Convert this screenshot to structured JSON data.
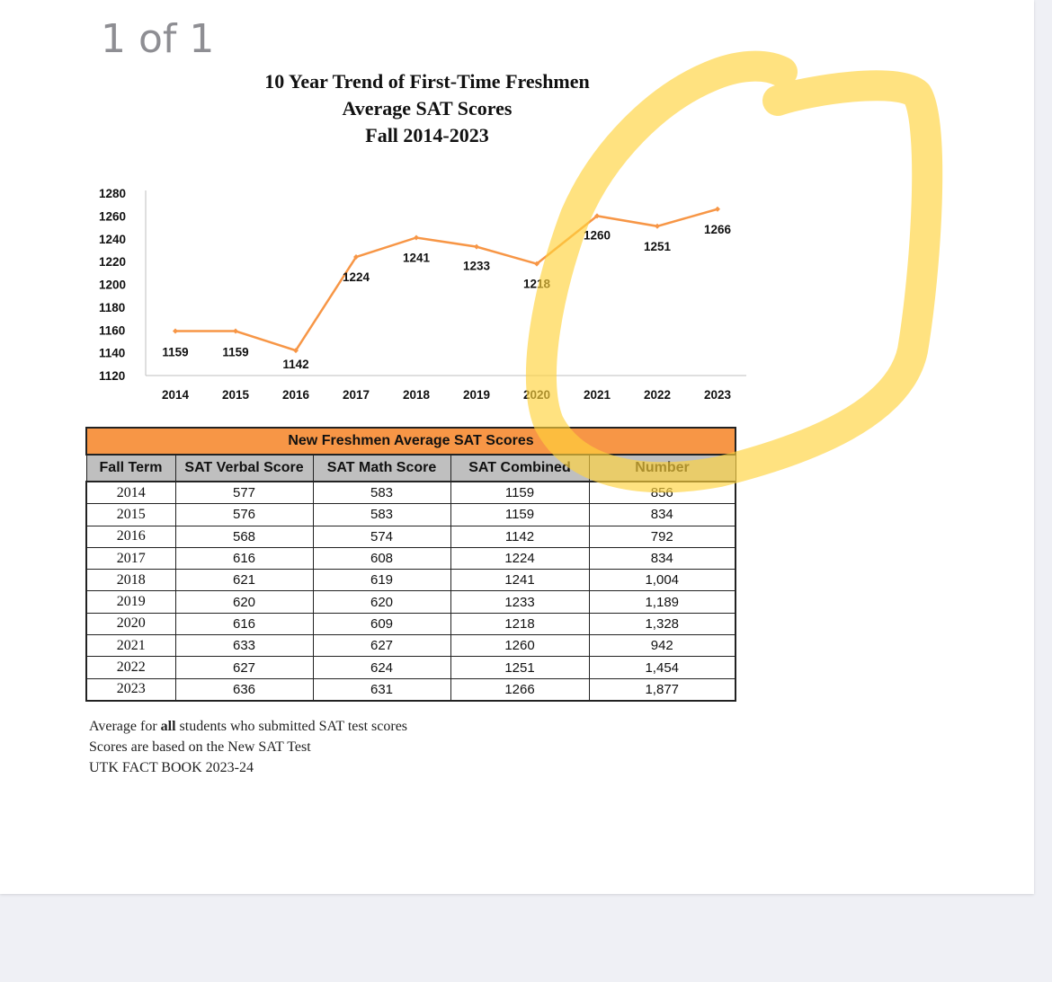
{
  "viewer": {
    "page_indicator": "1 of 1"
  },
  "chart_data": {
    "type": "line",
    "title_lines": [
      "10 Year Trend of First-Time Freshmen",
      "Average SAT Scores",
      "Fall 2014-2023"
    ],
    "categories": [
      "2014",
      "2015",
      "2016",
      "2017",
      "2018",
      "2019",
      "2020",
      "2021",
      "2022",
      "2023"
    ],
    "series": [
      {
        "values": [
          1159,
          1159,
          1142,
          1224,
          1241,
          1233,
          1218,
          1260,
          1251,
          1266
        ],
        "color": "#f79646"
      }
    ],
    "y_ticks": [
      1280,
      1260,
      1240,
      1220,
      1200,
      1180,
      1160,
      1140,
      1120
    ],
    "ylim": [
      1120,
      1280
    ],
    "grid": false,
    "legend": "none"
  },
  "table": {
    "caption": "New Freshmen Average SAT Scores",
    "headers": [
      "Fall Term",
      "SAT Verbal Score",
      "SAT Math Score",
      "SAT Combined",
      "Number"
    ],
    "rows": [
      [
        "2014",
        "577",
        "583",
        "1159",
        "856"
      ],
      [
        "2015",
        "576",
        "583",
        "1159",
        "834"
      ],
      [
        "2016",
        "568",
        "574",
        "1142",
        "792"
      ],
      [
        "2017",
        "616",
        "608",
        "1224",
        "834"
      ],
      [
        "2018",
        "621",
        "619",
        "1241",
        "1,004"
      ],
      [
        "2019",
        "620",
        "620",
        "1233",
        "1,189"
      ],
      [
        "2020",
        "616",
        "609",
        "1218",
        "1,328"
      ],
      [
        "2021",
        "633",
        "627",
        "1260",
        "942"
      ],
      [
        "2022",
        "627",
        "624",
        "1251",
        "1,454"
      ],
      [
        "2023",
        "636",
        "631",
        "1266",
        "1,877"
      ]
    ],
    "header_color": "#f79646",
    "column_header_color": "#bfbfbf"
  },
  "notes": {
    "line1_before": "Average for ",
    "line1_bold": "all",
    "line1_after": " students who submitted SAT test scores",
    "line2": "Scores are based on the New SAT Test",
    "line3": "UTK FACT BOOK 2023-24"
  },
  "annotation": {
    "highlighter_color": "#ffd23c",
    "shape": "freehand-loop"
  }
}
